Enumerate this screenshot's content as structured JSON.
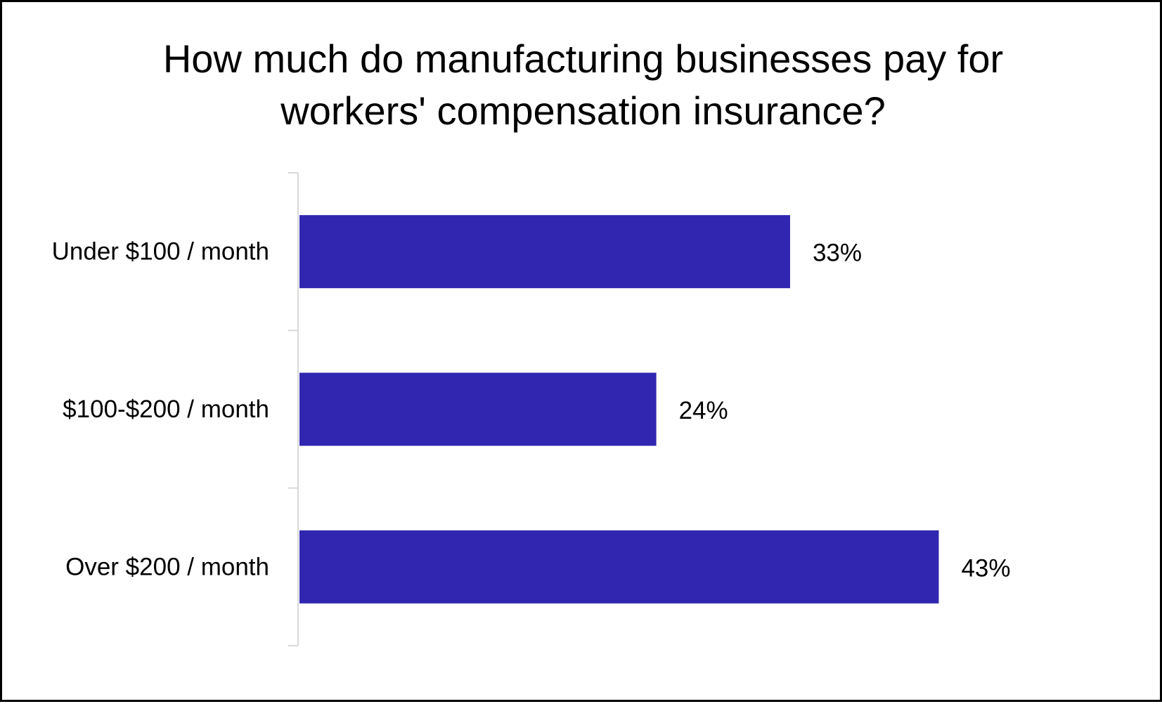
{
  "chart_data": {
    "type": "bar",
    "orientation": "horizontal",
    "title": "How much do manufacturing businesses pay for\nworkers' compensation insurance?",
    "categories": [
      "Under $100 / month",
      "$100-$200 / month",
      "Over $200 / month"
    ],
    "values": [
      33,
      24,
      43
    ],
    "value_labels": [
      "33%",
      "24%",
      "43%"
    ],
    "unit": "%",
    "xlim": [
      0,
      50
    ],
    "grid": false,
    "legend": "none",
    "bar_color": "#3026B0",
    "axis_color": "#D9D9D9"
  }
}
